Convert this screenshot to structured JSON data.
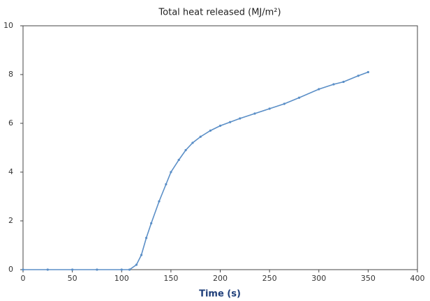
{
  "chart_data": {
    "type": "line",
    "title": "Total heat released (MJ/m²)",
    "x_label": "Time (s)",
    "series": [
      {
        "name": "Total heat released",
        "color": "#5b8fc7",
        "x": [
          0,
          25,
          50,
          75,
          100,
          108,
          115,
          120,
          125,
          130,
          138,
          145,
          150,
          158,
          165,
          172,
          180,
          190,
          200,
          210,
          220,
          235,
          250,
          265,
          280,
          300,
          315,
          325,
          340,
          350
        ],
        "values": [
          0,
          0,
          0,
          0,
          0,
          0,
          0.2,
          0.6,
          1.3,
          1.9,
          2.8,
          3.5,
          4.0,
          4.5,
          4.9,
          5.2,
          5.45,
          5.7,
          5.9,
          6.05,
          6.2,
          6.4,
          6.6,
          6.8,
          7.05,
          7.4,
          7.6,
          7.7,
          7.95,
          8.1
        ]
      }
    ],
    "xlim": [
      0,
      400
    ],
    "xticks": [
      0,
      50,
      100,
      150,
      200,
      250,
      300,
      350,
      400
    ],
    "ylim": [
      0,
      10
    ],
    "yticks": [
      0,
      2,
      4,
      6,
      8,
      10
    ],
    "grid": false
  }
}
